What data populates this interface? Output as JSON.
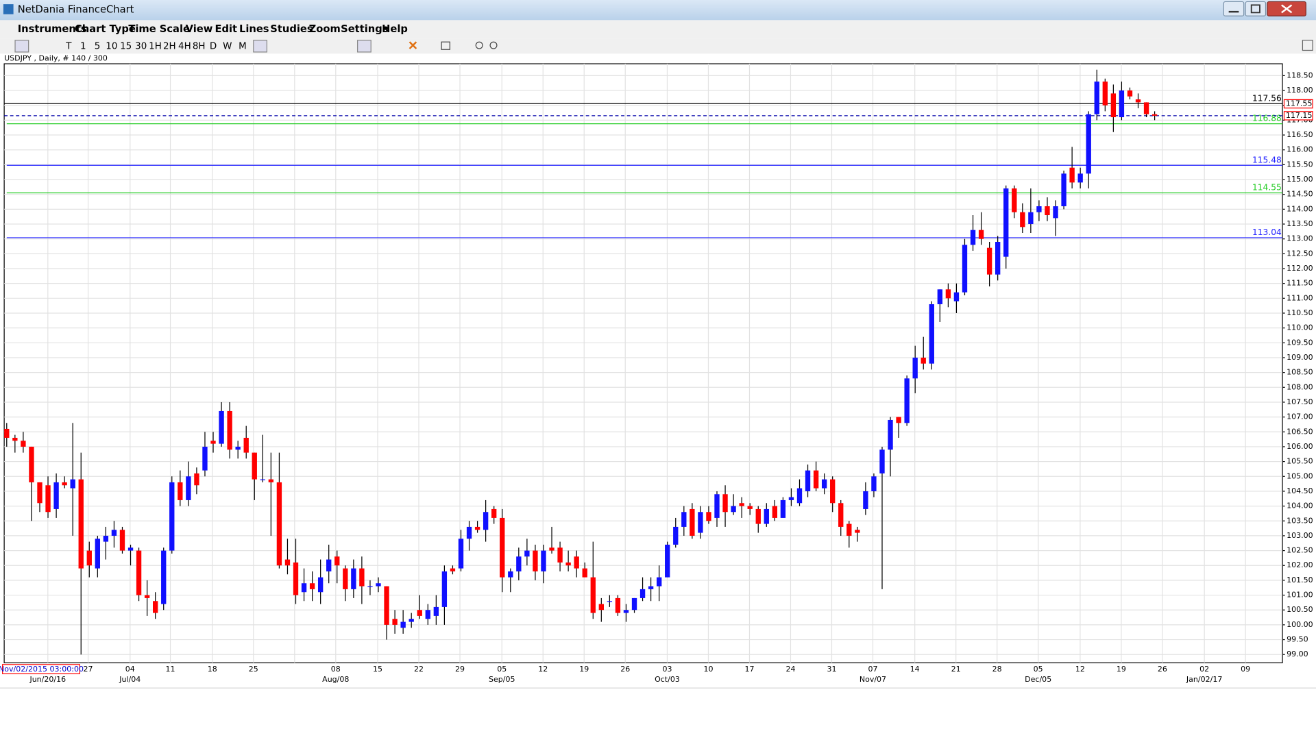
{
  "window": {
    "title": "NetDania FinanceChart",
    "menu": [
      "Instruments",
      "Chart Type",
      "Time Scale",
      "View",
      "Edit",
      "Lines",
      "Studies",
      "Zoom",
      "Settings",
      "Help"
    ],
    "toolbar": [
      "T",
      "1",
      "5",
      "10",
      "15",
      "30",
      "1H",
      "2H",
      "4H",
      "8H",
      "D",
      "W",
      "M"
    ],
    "date_box": "Nov/02/2015 03:00:00"
  },
  "chart_data": {
    "type": "candlestick",
    "title": "USDJPY , Daily, # 140 / 300",
    "up_color": "#1010ff",
    "down_color": "#ff0000",
    "wick_color": "#000000",
    "grid": true,
    "ylim": [
      98.72,
      118.9
    ],
    "yticks": [
      {
        "value": 99,
        "label": "99.00"
      },
      {
        "value": 99.5,
        "label": "99.50"
      },
      {
        "value": 100,
        "label": "100.00"
      },
      {
        "value": 100.5,
        "label": "100.50"
      },
      {
        "value": 101,
        "label": "101.00"
      },
      {
        "value": 101.5,
        "label": "101.50"
      },
      {
        "value": 102,
        "label": "102.00"
      },
      {
        "value": 102.5,
        "label": "102.50"
      },
      {
        "value": 103,
        "label": "103.00"
      },
      {
        "value": 103.5,
        "label": "103.50"
      },
      {
        "value": 104,
        "label": "104.00"
      },
      {
        "value": 104.5,
        "label": "104.50"
      },
      {
        "value": 105,
        "label": "105.00"
      },
      {
        "value": 105.5,
        "label": "105.50"
      },
      {
        "value": 106,
        "label": "106.00"
      },
      {
        "value": 106.5,
        "label": "106.50"
      },
      {
        "value": 107,
        "label": "107.00"
      },
      {
        "value": 107.5,
        "label": "107.50"
      },
      {
        "value": 108,
        "label": "108.00"
      },
      {
        "value": 108.5,
        "label": "108.50"
      },
      {
        "value": 109,
        "label": "109.00"
      },
      {
        "value": 109.5,
        "label": "109.50"
      },
      {
        "value": 110,
        "label": "110.00"
      },
      {
        "value": 110.5,
        "label": "110.50"
      },
      {
        "value": 111,
        "label": "111.00"
      },
      {
        "value": 111.5,
        "label": "111.50"
      },
      {
        "value": 112,
        "label": "112.00"
      },
      {
        "value": 112.5,
        "label": "112.50"
      },
      {
        "value": 113,
        "label": "113.00"
      },
      {
        "value": 113.5,
        "label": "113.50"
      },
      {
        "value": 114,
        "label": "114.00"
      },
      {
        "value": 114.5,
        "label": "114.50"
      },
      {
        "value": 115,
        "label": "115.00"
      },
      {
        "value": 115.5,
        "label": "115.50"
      },
      {
        "value": 116,
        "label": "116.00"
      },
      {
        "value": 116.5,
        "label": "116.50"
      },
      {
        "value": 117,
        "label": "117.00"
      },
      {
        "value": 117.5,
        "label": "117.50"
      },
      {
        "value": 118,
        "label": "118.00"
      },
      {
        "value": 118.5,
        "label": "118.50"
      }
    ],
    "x_labels": [
      "27",
      "04",
      "11",
      "18",
      "25",
      "08",
      "15",
      "22",
      "29",
      "05",
      "12",
      "19",
      "26",
      "03",
      "10",
      "17",
      "24",
      "31",
      "07",
      "14",
      "21",
      "28",
      "05",
      "12",
      "19",
      "26",
      "02",
      "09"
    ],
    "x_labels_2": [
      "Jun/20/16",
      "Jul/04",
      "Aug/08",
      "Sep/05",
      "Oct/03",
      "Nov/07",
      "Dec/05",
      "Jan/02/17"
    ],
    "hlines": [
      {
        "value": 117.56,
        "color": "#000000"
      },
      {
        "value": 116.88,
        "color": "#22cc22"
      },
      {
        "value": 115.48,
        "color": "#2222ff"
      },
      {
        "value": 114.55,
        "color": "#22cc22"
      },
      {
        "value": 113.04,
        "color": "#2222ff"
      }
    ],
    "price_markers": [
      {
        "value": 117.55,
        "dashed": false
      },
      {
        "value": 117.15,
        "dashed": true
      }
    ],
    "candles": [
      [
        106.6,
        106.8,
        106.0,
        106.3
      ],
      [
        106.3,
        106.4,
        105.8,
        106.2
      ],
      [
        106.2,
        106.5,
        105.8,
        106.0
      ],
      [
        106.0,
        106.0,
        103.5,
        104.8
      ],
      [
        104.8,
        104.8,
        103.8,
        104.1
      ],
      [
        104.7,
        105.0,
        103.6,
        103.8
      ],
      [
        103.9,
        105.1,
        103.6,
        104.8
      ],
      [
        104.8,
        105.0,
        104.6,
        104.7
      ],
      [
        104.6,
        106.8,
        103.0,
        104.9
      ],
      [
        104.9,
        105.8,
        99.0,
        101.9
      ],
      [
        102.5,
        102.8,
        101.6,
        102.0
      ],
      [
        101.9,
        103.0,
        101.6,
        102.9
      ],
      [
        102.8,
        103.3,
        102.2,
        103.0
      ],
      [
        103.0,
        103.5,
        102.6,
        103.2
      ],
      [
        103.2,
        103.3,
        102.4,
        102.5
      ],
      [
        102.5,
        102.7,
        102.0,
        102.6
      ],
      [
        102.5,
        102.6,
        100.8,
        101.0
      ],
      [
        101.0,
        101.5,
        100.3,
        100.9
      ],
      [
        100.8,
        101.1,
        100.2,
        100.4
      ],
      [
        100.7,
        102.6,
        100.5,
        102.5
      ],
      [
        102.5,
        105.0,
        102.4,
        104.8
      ],
      [
        104.8,
        105.2,
        104.0,
        104.2
      ],
      [
        104.2,
        105.5,
        104.0,
        105.0
      ],
      [
        105.1,
        105.3,
        104.4,
        104.7
      ],
      [
        105.2,
        106.5,
        105.0,
        106.0
      ],
      [
        106.2,
        106.5,
        105.8,
        106.1
      ],
      [
        106.1,
        107.5,
        106.0,
        107.2
      ],
      [
        107.2,
        107.5,
        105.6,
        105.9
      ],
      [
        105.9,
        106.2,
        105.6,
        106.0
      ],
      [
        106.3,
        106.7,
        105.6,
        105.8
      ],
      [
        105.8,
        105.8,
        104.2,
        104.9
      ],
      [
        104.9,
        106.4,
        104.8,
        104.9
      ],
      [
        104.9,
        105.8,
        103.0,
        104.8
      ],
      [
        104.8,
        105.8,
        101.9,
        102.0
      ],
      [
        102.2,
        102.9,
        101.7,
        102.0
      ],
      [
        102.1,
        102.9,
        100.7,
        101.0
      ],
      [
        101.1,
        101.9,
        100.8,
        101.4
      ],
      [
        101.4,
        101.8,
        100.8,
        101.2
      ],
      [
        101.1,
        102.2,
        100.7,
        101.6
      ],
      [
        101.8,
        102.7,
        101.4,
        102.2
      ],
      [
        102.3,
        102.5,
        101.4,
        102.0
      ],
      [
        101.9,
        102.0,
        100.8,
        101.2
      ],
      [
        101.2,
        102.2,
        100.9,
        101.9
      ],
      [
        101.9,
        102.3,
        100.7,
        101.3
      ],
      [
        101.3,
        101.5,
        101.0,
        101.3
      ],
      [
        101.3,
        101.6,
        101.1,
        101.4
      ],
      [
        101.3,
        101.3,
        99.5,
        100.0
      ],
      [
        100.2,
        100.5,
        99.7,
        100.0
      ],
      [
        99.9,
        100.5,
        99.7,
        100.1
      ],
      [
        100.1,
        100.4,
        99.9,
        100.2
      ],
      [
        100.5,
        101.0,
        100.2,
        100.3
      ],
      [
        100.2,
        100.7,
        100.0,
        100.5
      ],
      [
        100.3,
        101.0,
        100.0,
        100.6
      ],
      [
        100.6,
        102.0,
        100.0,
        101.8
      ],
      [
        101.9,
        102.0,
        101.7,
        101.8
      ],
      [
        101.9,
        103.2,
        101.8,
        102.9
      ],
      [
        102.9,
        103.5,
        102.5,
        103.3
      ],
      [
        103.3,
        103.5,
        103.1,
        103.2
      ],
      [
        103.2,
        104.2,
        102.8,
        103.8
      ],
      [
        103.9,
        104.0,
        103.4,
        103.6
      ],
      [
        103.6,
        103.9,
        101.1,
        101.6
      ],
      [
        101.6,
        101.9,
        101.1,
        101.8
      ],
      [
        101.8,
        102.6,
        101.5,
        102.3
      ],
      [
        102.3,
        102.9,
        102.0,
        102.5
      ],
      [
        102.5,
        102.7,
        101.5,
        101.8
      ],
      [
        101.8,
        102.7,
        101.4,
        102.5
      ],
      [
        102.6,
        103.3,
        102.4,
        102.5
      ],
      [
        102.6,
        102.8,
        101.8,
        102.1
      ],
      [
        102.1,
        102.5,
        101.8,
        102.0
      ],
      [
        102.3,
        102.5,
        101.6,
        101.9
      ],
      [
        101.9,
        102.1,
        101.6,
        101.6
      ],
      [
        101.6,
        102.8,
        100.2,
        100.4
      ],
      [
        100.7,
        100.9,
        100.1,
        100.5
      ],
      [
        100.8,
        101.0,
        100.6,
        100.8
      ],
      [
        100.9,
        101.0,
        100.3,
        100.4
      ],
      [
        100.4,
        100.7,
        100.1,
        100.5
      ],
      [
        100.5,
        100.9,
        100.4,
        100.9
      ],
      [
        100.9,
        101.6,
        100.8,
        101.2
      ],
      [
        101.2,
        101.6,
        100.8,
        101.3
      ],
      [
        101.3,
        102.0,
        100.8,
        101.6
      ],
      [
        101.6,
        102.8,
        101.6,
        102.7
      ],
      [
        102.7,
        103.6,
        102.6,
        103.3
      ],
      [
        103.3,
        104.0,
        103.0,
        103.8
      ],
      [
        103.9,
        104.1,
        102.9,
        103.0
      ],
      [
        103.1,
        104.0,
        102.9,
        103.8
      ],
      [
        103.8,
        104.0,
        103.4,
        103.5
      ],
      [
        103.6,
        104.5,
        103.3,
        104.4
      ],
      [
        104.4,
        104.7,
        103.3,
        103.8
      ],
      [
        103.8,
        104.4,
        103.7,
        104.0
      ],
      [
        104.1,
        104.3,
        103.6,
        104.0
      ],
      [
        104.0,
        104.1,
        103.7,
        103.9
      ],
      [
        103.9,
        104.0,
        103.1,
        103.4
      ],
      [
        103.4,
        104.1,
        103.3,
        103.9
      ],
      [
        104.0,
        104.2,
        103.5,
        103.6
      ],
      [
        103.6,
        104.3,
        103.6,
        104.2
      ],
      [
        104.2,
        104.6,
        104.0,
        104.3
      ],
      [
        104.1,
        104.9,
        104.0,
        104.6
      ],
      [
        104.5,
        105.4,
        104.3,
        105.2
      ],
      [
        105.2,
        105.5,
        104.5,
        104.6
      ],
      [
        104.6,
        105.1,
        104.4,
        104.9
      ],
      [
        104.9,
        105.0,
        103.8,
        104.1
      ],
      [
        104.1,
        104.2,
        103.0,
        103.3
      ],
      [
        103.4,
        103.5,
        102.6,
        103.0
      ],
      [
        103.2,
        103.3,
        102.8,
        103.1
      ],
      [
        103.9,
        104.8,
        103.7,
        104.5
      ],
      [
        104.5,
        105.1,
        104.3,
        105.0
      ],
      [
        105.1,
        106.0,
        101.2,
        105.9
      ],
      [
        105.9,
        107.0,
        105.0,
        106.9
      ],
      [
        107.0,
        107.0,
        106.3,
        106.8
      ],
      [
        106.8,
        108.4,
        106.7,
        108.3
      ],
      [
        108.3,
        109.4,
        107.8,
        109.0
      ],
      [
        109.0,
        109.7,
        108.6,
        108.8
      ],
      [
        108.8,
        110.9,
        108.6,
        110.8
      ],
      [
        110.8,
        111.3,
        110.2,
        111.3
      ],
      [
        111.3,
        111.5,
        110.7,
        111.0
      ],
      [
        110.9,
        111.5,
        110.5,
        111.2
      ],
      [
        111.2,
        113.0,
        111.1,
        112.8
      ],
      [
        112.8,
        113.8,
        112.6,
        113.3
      ],
      [
        113.3,
        113.9,
        112.8,
        113.0
      ],
      [
        112.7,
        112.9,
        111.4,
        111.8
      ],
      [
        111.8,
        113.1,
        111.6,
        112.9
      ],
      [
        112.4,
        114.8,
        112.0,
        114.7
      ],
      [
        114.7,
        114.8,
        113.7,
        113.9
      ],
      [
        113.9,
        114.2,
        113.2,
        113.4
      ],
      [
        113.5,
        114.7,
        113.2,
        113.9
      ],
      [
        113.9,
        114.3,
        113.6,
        114.1
      ],
      [
        114.1,
        114.4,
        113.6,
        113.8
      ],
      [
        113.7,
        114.3,
        113.1,
        114.1
      ],
      [
        114.1,
        115.3,
        114.0,
        115.2
      ],
      [
        115.4,
        116.1,
        114.7,
        114.9
      ],
      [
        114.9,
        115.4,
        114.7,
        115.2
      ],
      [
        115.2,
        117.3,
        114.7,
        117.2
      ],
      [
        117.2,
        118.7,
        117.0,
        118.3
      ],
      [
        118.3,
        118.4,
        117.3,
        117.5
      ],
      [
        117.9,
        118.2,
        116.6,
        117.1
      ],
      [
        117.1,
        118.3,
        117.0,
        118.0
      ],
      [
        118.0,
        118.1,
        117.7,
        117.8
      ],
      [
        117.7,
        117.9,
        117.4,
        117.6
      ],
      [
        117.6,
        117.6,
        117.1,
        117.2
      ],
      [
        117.2,
        117.3,
        117.0,
        117.15
      ]
    ]
  }
}
